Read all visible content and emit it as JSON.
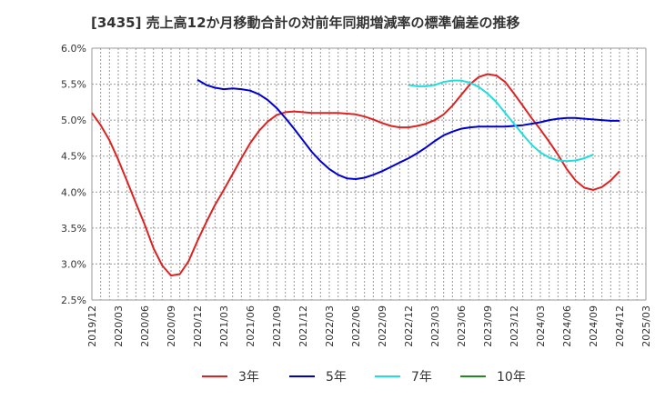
{
  "chart_data": {
    "type": "line",
    "title": "[3435]  売上高12か月移動合計の対前年同期増減率の標準偏差の推移",
    "xlabel": "",
    "ylabel": "",
    "ylim": [
      2.5,
      6.0
    ],
    "yticks": [
      2.5,
      3.0,
      3.5,
      4.0,
      4.5,
      5.0,
      5.5,
      6.0
    ],
    "ytick_labels": [
      "2.5%",
      "3.0%",
      "3.5%",
      "4.0%",
      "4.5%",
      "5.0%",
      "5.5%",
      "6.0%"
    ],
    "xticks": [
      "2019/12",
      "2020/03",
      "2020/06",
      "2020/09",
      "2020/12",
      "2021/03",
      "2021/06",
      "2021/09",
      "2021/12",
      "2022/03",
      "2022/06",
      "2022/09",
      "2022/12",
      "2023/03",
      "2023/06",
      "2023/09",
      "2023/12",
      "2024/03",
      "2024/06",
      "2024/09",
      "2024/12",
      "2025/03"
    ],
    "grid": true,
    "legend_position": "bottom",
    "series": [
      {
        "name": "3年",
        "color": "#dd2222",
        "points": [
          [
            "2019/12",
            5.1
          ],
          [
            "2020/01",
            4.93
          ],
          [
            "2020/02",
            4.72
          ],
          [
            "2020/03",
            4.45
          ],
          [
            "2020/04",
            4.15
          ],
          [
            "2020/05",
            3.85
          ],
          [
            "2020/06",
            3.55
          ],
          [
            "2020/07",
            3.22
          ],
          [
            "2020/08",
            2.98
          ],
          [
            "2020/09",
            2.84
          ],
          [
            "2020/10",
            2.86
          ],
          [
            "2020/11",
            3.04
          ],
          [
            "2020/12",
            3.32
          ],
          [
            "2021/01",
            3.58
          ],
          [
            "2021/02",
            3.82
          ],
          [
            "2021/03",
            4.03
          ],
          [
            "2021/04",
            4.25
          ],
          [
            "2021/05",
            4.47
          ],
          [
            "2021/06",
            4.68
          ],
          [
            "2021/07",
            4.85
          ],
          [
            "2021/08",
            4.98
          ],
          [
            "2021/09",
            5.07
          ],
          [
            "2021/10",
            5.11
          ],
          [
            "2021/11",
            5.12
          ],
          [
            "2021/12",
            5.11
          ],
          [
            "2022/01",
            5.1
          ],
          [
            "2022/02",
            5.1
          ],
          [
            "2022/03",
            5.1
          ],
          [
            "2022/04",
            5.1
          ],
          [
            "2022/05",
            5.09
          ],
          [
            "2022/06",
            5.08
          ],
          [
            "2022/07",
            5.05
          ],
          [
            "2022/08",
            5.01
          ],
          [
            "2022/09",
            4.96
          ],
          [
            "2022/10",
            4.92
          ],
          [
            "2022/11",
            4.9
          ],
          [
            "2022/12",
            4.9
          ],
          [
            "2023/01",
            4.92
          ],
          [
            "2023/02",
            4.95
          ],
          [
            "2023/03",
            5.0
          ],
          [
            "2023/04",
            5.08
          ],
          [
            "2023/05",
            5.2
          ],
          [
            "2023/06",
            5.35
          ],
          [
            "2023/07",
            5.5
          ],
          [
            "2023/08",
            5.6
          ],
          [
            "2023/09",
            5.64
          ],
          [
            "2023/10",
            5.62
          ],
          [
            "2023/11",
            5.53
          ],
          [
            "2023/12",
            5.37
          ],
          [
            "2024/01",
            5.2
          ],
          [
            "2024/02",
            5.03
          ],
          [
            "2024/03",
            4.87
          ],
          [
            "2024/04",
            4.7
          ],
          [
            "2024/05",
            4.52
          ],
          [
            "2024/06",
            4.32
          ],
          [
            "2024/07",
            4.16
          ],
          [
            "2024/08",
            4.06
          ],
          [
            "2024/09",
            4.03
          ],
          [
            "2024/10",
            4.07
          ],
          [
            "2024/11",
            4.16
          ],
          [
            "2024/12",
            4.29
          ]
        ]
      },
      {
        "name": "5年",
        "color": "#0000cc",
        "points": [
          [
            "2020/12",
            5.56
          ],
          [
            "2021/01",
            5.49
          ],
          [
            "2021/02",
            5.45
          ],
          [
            "2021/03",
            5.43
          ],
          [
            "2021/04",
            5.44
          ],
          [
            "2021/05",
            5.43
          ],
          [
            "2021/06",
            5.41
          ],
          [
            "2021/07",
            5.36
          ],
          [
            "2021/08",
            5.28
          ],
          [
            "2021/09",
            5.17
          ],
          [
            "2021/10",
            5.03
          ],
          [
            "2021/11",
            4.88
          ],
          [
            "2021/12",
            4.72
          ],
          [
            "2022/01",
            4.56
          ],
          [
            "2022/02",
            4.43
          ],
          [
            "2022/03",
            4.32
          ],
          [
            "2022/04",
            4.24
          ],
          [
            "2022/05",
            4.19
          ],
          [
            "2022/06",
            4.18
          ],
          [
            "2022/07",
            4.2
          ],
          [
            "2022/08",
            4.24
          ],
          [
            "2022/09",
            4.29
          ],
          [
            "2022/10",
            4.35
          ],
          [
            "2022/11",
            4.41
          ],
          [
            "2022/12",
            4.47
          ],
          [
            "2023/01",
            4.54
          ],
          [
            "2023/02",
            4.62
          ],
          [
            "2023/03",
            4.71
          ],
          [
            "2023/04",
            4.79
          ],
          [
            "2023/05",
            4.84
          ],
          [
            "2023/06",
            4.88
          ],
          [
            "2023/07",
            4.9
          ],
          [
            "2023/08",
            4.91
          ],
          [
            "2023/09",
            4.91
          ],
          [
            "2023/10",
            4.91
          ],
          [
            "2023/11",
            4.91
          ],
          [
            "2023/12",
            4.92
          ],
          [
            "2024/01",
            4.93
          ],
          [
            "2024/02",
            4.95
          ],
          [
            "2024/03",
            4.97
          ],
          [
            "2024/04",
            5.0
          ],
          [
            "2024/05",
            5.02
          ],
          [
            "2024/06",
            5.03
          ],
          [
            "2024/07",
            5.03
          ],
          [
            "2024/08",
            5.02
          ],
          [
            "2024/09",
            5.01
          ],
          [
            "2024/10",
            5.0
          ],
          [
            "2024/11",
            4.99
          ],
          [
            "2024/12",
            4.99
          ]
        ]
      },
      {
        "name": "7年",
        "color": "#22dddd",
        "points": [
          [
            "2022/12",
            5.49
          ],
          [
            "2023/01",
            5.47
          ],
          [
            "2023/02",
            5.47
          ],
          [
            "2023/03",
            5.49
          ],
          [
            "2023/04",
            5.53
          ],
          [
            "2023/05",
            5.55
          ],
          [
            "2023/06",
            5.55
          ],
          [
            "2023/07",
            5.52
          ],
          [
            "2023/08",
            5.46
          ],
          [
            "2023/09",
            5.37
          ],
          [
            "2023/10",
            5.25
          ],
          [
            "2023/11",
            5.1
          ],
          [
            "2023/12",
            4.95
          ],
          [
            "2024/01",
            4.8
          ],
          [
            "2024/02",
            4.66
          ],
          [
            "2024/03",
            4.55
          ],
          [
            "2024/04",
            4.48
          ],
          [
            "2024/05",
            4.44
          ],
          [
            "2024/06",
            4.43
          ],
          [
            "2024/07",
            4.44
          ],
          [
            "2024/08",
            4.47
          ],
          [
            "2024/09",
            4.52
          ]
        ]
      },
      {
        "name": "10年",
        "color": "#228822",
        "points": []
      }
    ]
  }
}
